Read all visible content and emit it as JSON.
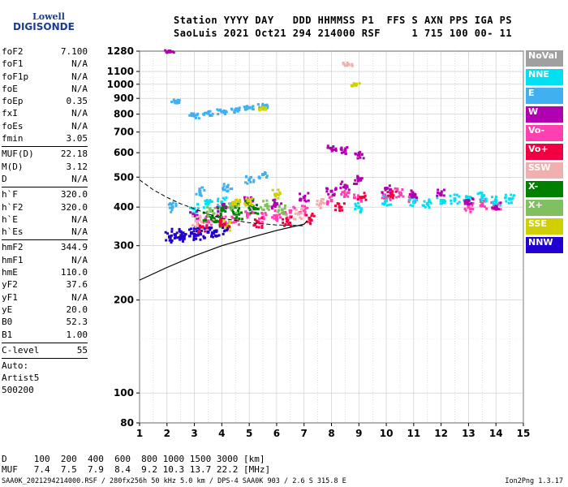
{
  "logo": {
    "line1": "Lowell",
    "line2": "DIGISONDE"
  },
  "header": {
    "line1": "Station YYYY DAY   DDD HHMMSS P1  FFS S AXN PPS IGA PS",
    "line2": "SaoLuis 2021 Oct21 294 214000 RSF     1 715 100 00- 11"
  },
  "params": {
    "group1": [
      {
        "k": "foF2",
        "v": "7.100"
      },
      {
        "k": "foF1",
        "v": "N/A"
      },
      {
        "k": "foF1p",
        "v": "N/A"
      },
      {
        "k": "foE",
        "v": "N/A"
      },
      {
        "k": "foEp",
        "v": "0.35"
      },
      {
        "k": "fxI",
        "v": "N/A"
      },
      {
        "k": "foEs",
        "v": "N/A"
      },
      {
        "k": "fmin",
        "v": "3.05"
      }
    ],
    "group2": [
      {
        "k": "MUF(D)",
        "v": "22.18"
      },
      {
        "k": "M(D)",
        "v": "3.12"
      },
      {
        "k": "D",
        "v": "N/A"
      }
    ],
    "group3": [
      {
        "k": "h`F",
        "v": "320.0"
      },
      {
        "k": "h`F2",
        "v": "320.0"
      },
      {
        "k": "h`E",
        "v": "N/A"
      },
      {
        "k": "h`Es",
        "v": "N/A"
      }
    ],
    "group4": [
      {
        "k": "hmF2",
        "v": "344.9"
      },
      {
        "k": "hmF1",
        "v": "N/A"
      },
      {
        "k": "hmE",
        "v": "110.0"
      },
      {
        "k": "yF2",
        "v": "37.6"
      },
      {
        "k": "yF1",
        "v": "N/A"
      },
      {
        "k": "yE",
        "v": "20.0"
      },
      {
        "k": "B0",
        "v": "52.3"
      },
      {
        "k": "B1",
        "v": "1.00"
      }
    ],
    "clevel": {
      "k": "C-level",
      "v": "55"
    },
    "auto": [
      "Auto:",
      "Artist5",
      "500200"
    ]
  },
  "legend": [
    {
      "label": "NoVal",
      "color": "#a0a0a0"
    },
    {
      "label": "NNE",
      "color": "#00e0f0"
    },
    {
      "label": "E",
      "color": "#40b0f0"
    },
    {
      "label": "W",
      "color": "#b000b0"
    },
    {
      "label": "Vo-",
      "color": "#ff40b0"
    },
    {
      "label": "Vo+",
      "color": "#f00040"
    },
    {
      "label": "SSW",
      "color": "#f0b0b0"
    },
    {
      "label": "X-",
      "color": "#008000"
    },
    {
      "label": "X+",
      "color": "#80c060"
    },
    {
      "label": "SSE",
      "color": "#d0d000"
    },
    {
      "label": "NNW",
      "color": "#2000d0"
    }
  ],
  "chart_data": {
    "type": "scatter",
    "xlim": [
      1,
      15
    ],
    "ylim": [
      80,
      1280
    ],
    "y_scale": "log",
    "xticks": [
      1,
      2,
      3,
      4,
      5,
      6,
      7,
      8,
      9,
      10,
      11,
      12,
      13,
      14,
      15
    ],
    "yticks": [
      80,
      100,
      200,
      300,
      400,
      500,
      600,
      700,
      800,
      900,
      1000,
      1100,
      1280
    ],
    "yticklabels": [
      "80",
      "100",
      "200",
      "300",
      "400",
      "500",
      "600",
      "700",
      "800",
      "900",
      "1000",
      "1100",
      "1280"
    ],
    "grid": true,
    "profile_curve": [
      [
        1,
        232
      ],
      [
        2,
        255
      ],
      [
        3,
        278
      ],
      [
        4,
        300
      ],
      [
        5,
        318
      ],
      [
        6,
        336
      ],
      [
        7,
        352
      ],
      [
        7.1,
        360
      ]
    ],
    "dashed_curve": [
      [
        1,
        490
      ],
      [
        1.5,
        455
      ],
      [
        2,
        430
      ],
      [
        2.5,
        410
      ],
      [
        3,
        395
      ],
      [
        3.5,
        380
      ],
      [
        4,
        368
      ],
      [
        5,
        356
      ],
      [
        6,
        350
      ],
      [
        7,
        348
      ]
    ],
    "series": [
      {
        "color_key": "NNW",
        "points": [
          [
            2.1,
            320
          ],
          [
            2.3,
            325
          ],
          [
            2.6,
            322
          ],
          [
            2.9,
            330
          ],
          [
            3.2,
            328
          ],
          [
            3.5,
            332
          ],
          [
            3.8,
            335
          ],
          [
            4.2,
            340
          ],
          [
            2.5,
            318
          ],
          [
            3.0,
            326
          ]
        ]
      },
      {
        "color_key": "Vo-",
        "points": [
          [
            3.5,
            360
          ],
          [
            4.0,
            370
          ],
          [
            4.5,
            365
          ],
          [
            5.0,
            380
          ],
          [
            5.5,
            370
          ],
          [
            6.0,
            375
          ],
          [
            6.5,
            385
          ],
          [
            7.0,
            390
          ],
          [
            8.0,
            420
          ],
          [
            8.5,
            440
          ],
          [
            9.0,
            430
          ],
          [
            10.0,
            430
          ],
          [
            10.5,
            445
          ],
          [
            11.0,
            430
          ],
          [
            13.0,
            400
          ],
          [
            13.5,
            410
          ],
          [
            14.0,
            405
          ]
        ]
      },
      {
        "color_key": "NNE",
        "points": [
          [
            3.0,
            395
          ],
          [
            3.5,
            410
          ],
          [
            4.0,
            415
          ],
          [
            9.0,
            400
          ],
          [
            10.0,
            420
          ],
          [
            11.0,
            415
          ],
          [
            11.5,
            410
          ],
          [
            12.0,
            420
          ],
          [
            12.5,
            425
          ],
          [
            13.0,
            430
          ],
          [
            13.5,
            430
          ],
          [
            14.0,
            420
          ],
          [
            14.5,
            425
          ]
        ]
      },
      {
        "color_key": "E",
        "points": [
          [
            2.2,
            400
          ],
          [
            3.0,
            790
          ],
          [
            3.5,
            805
          ],
          [
            4.0,
            815
          ],
          [
            4.5,
            825
          ],
          [
            5.0,
            840
          ],
          [
            5.5,
            850
          ],
          [
            2.3,
            880
          ],
          [
            4.2,
            465
          ],
          [
            5.0,
            490
          ],
          [
            5.5,
            510
          ],
          [
            3.2,
            450
          ]
        ]
      },
      {
        "color_key": "W",
        "points": [
          [
            3.0,
            375
          ],
          [
            4.0,
            395
          ],
          [
            5.0,
            420
          ],
          [
            6.0,
            410
          ],
          [
            7.0,
            430
          ],
          [
            8.0,
            450
          ],
          [
            8.5,
            470
          ],
          [
            9.0,
            490
          ],
          [
            10.0,
            460
          ],
          [
            11.0,
            440
          ],
          [
            12.0,
            440
          ],
          [
            13.0,
            420
          ],
          [
            14.0,
            400
          ],
          [
            8.0,
            620
          ],
          [
            8.5,
            610
          ],
          [
            9.0,
            590
          ],
          [
            2.1,
            1280
          ]
        ]
      },
      {
        "color_key": "X-",
        "points": [
          [
            3.5,
            375
          ],
          [
            4.0,
            390
          ],
          [
            4.5,
            400
          ],
          [
            5.0,
            410
          ],
          [
            4.6,
            380
          ],
          [
            5.2,
            395
          ],
          [
            3.8,
            360
          ]
        ]
      },
      {
        "color_key": "X+",
        "points": [
          [
            3.6,
            388
          ],
          [
            4.4,
            398
          ],
          [
            5.6,
            405
          ],
          [
            6.2,
            392
          ]
        ]
      },
      {
        "color_key": "SSE",
        "points": [
          [
            4.5,
            410
          ],
          [
            5.0,
            420
          ],
          [
            6.0,
            440
          ],
          [
            8.9,
            1000
          ],
          [
            5.5,
            830
          ],
          [
            4.2,
            350
          ]
        ]
      },
      {
        "color_key": "Vo+",
        "points": [
          [
            3.3,
            345
          ],
          [
            4.1,
            352
          ],
          [
            5.3,
            358
          ],
          [
            6.4,
            362
          ],
          [
            7.2,
            368
          ],
          [
            8.3,
            400
          ],
          [
            9.1,
            430
          ],
          [
            10.2,
            440
          ]
        ]
      },
      {
        "color_key": "SSW",
        "points": [
          [
            3.1,
            360
          ],
          [
            6.8,
            380
          ],
          [
            8.6,
            1160
          ],
          [
            7.6,
            410
          ]
        ]
      }
    ]
  },
  "footer": {
    "d_row": "D     100  200  400  600  800 1000 1500 3000 [km]",
    "muf_row": "MUF   7.4  7.5  7.9  8.4  9.2 10.3 13.7 22.2 [MHz]",
    "source": "SAA0K_2021294214000.RSF / 280fx256h 50 kHz 5.0 km / DPS-4 SAA0K 903 / 2.6 S 315.8 E",
    "version": "Ion2Png 1.3.17"
  }
}
